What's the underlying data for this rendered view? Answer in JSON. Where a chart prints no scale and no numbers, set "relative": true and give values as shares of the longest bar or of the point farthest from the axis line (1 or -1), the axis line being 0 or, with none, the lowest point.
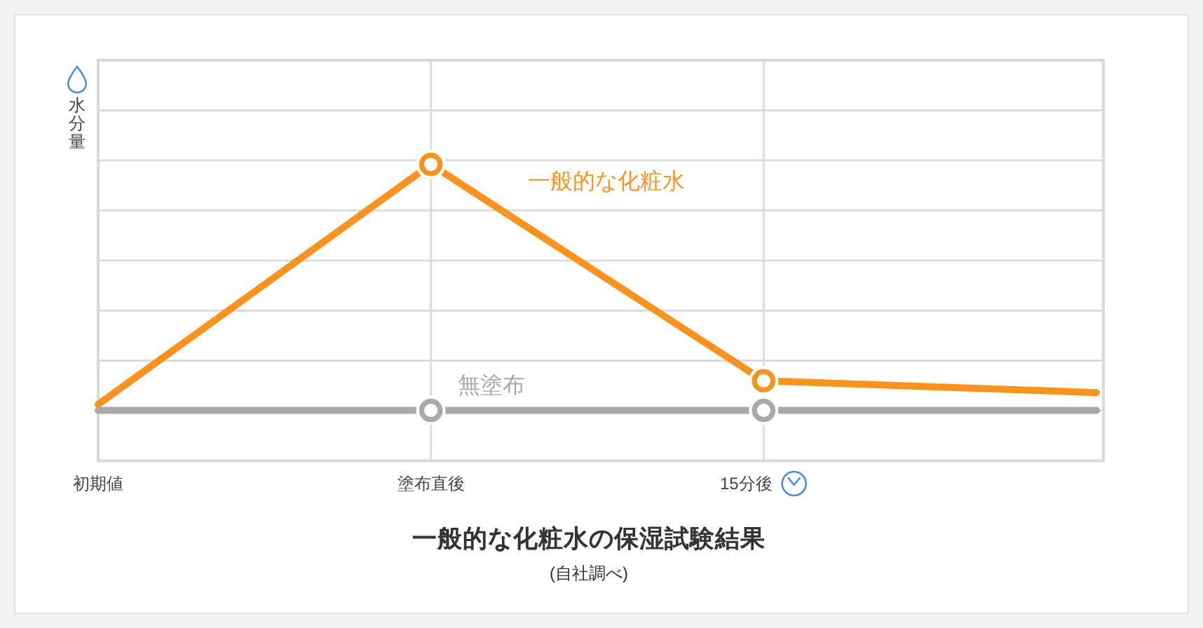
{
  "chart_data": {
    "type": "line",
    "title": "一般的な化粧水の保湿試験結果",
    "ylabel": "水分量",
    "annotations": [
      "(自社調べ)"
    ],
    "categories": [
      "初期値",
      "塗布直後",
      "15分後",
      null
    ],
    "relative": true,
    "grid": true,
    "marker": "circle",
    "line_style": "solid",
    "series": [
      {
        "name": "無塗布",
        "color": "#a9a9a9",
        "values": [
          0.17,
          0.17,
          0.17,
          0.17
        ]
      },
      {
        "name": "一般的な化粧水",
        "color": "#f7931e",
        "values": [
          0.19,
          1,
          0.27,
          0.23
        ]
      }
    ]
  }
}
